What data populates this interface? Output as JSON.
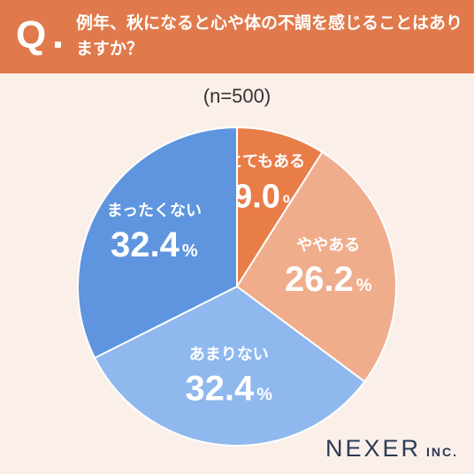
{
  "header": {
    "q_letter": "Q",
    "question": "例年、秋になると心や体の不調を感じることはありますか？"
  },
  "sample_note": "(n=500)",
  "logo": {
    "main": "NEXER",
    "sub": "INC."
  },
  "colors": {
    "header_bg": "#e07a4c",
    "background": "#fbefe9",
    "slice_1": "#e87d48",
    "slice_2": "#f0ad8c",
    "slice_3": "#8fb8ee",
    "slice_4": "#5e95de"
  },
  "chart_data": {
    "type": "pie",
    "title": "",
    "slices": [
      {
        "label": "とてもある",
        "value": 9.0,
        "display": "9.0",
        "unit": "%",
        "color": "#e87d48"
      },
      {
        "label": "ややある",
        "value": 26.2,
        "display": "26.2",
        "unit": "%",
        "color": "#f0ad8c"
      },
      {
        "label": "あまりない",
        "value": 32.4,
        "display": "32.4",
        "unit": "%",
        "color": "#8fb8ee"
      },
      {
        "label": "まったくない",
        "value": 32.4,
        "display": "32.4",
        "unit": "%",
        "color": "#5e95de"
      }
    ]
  }
}
